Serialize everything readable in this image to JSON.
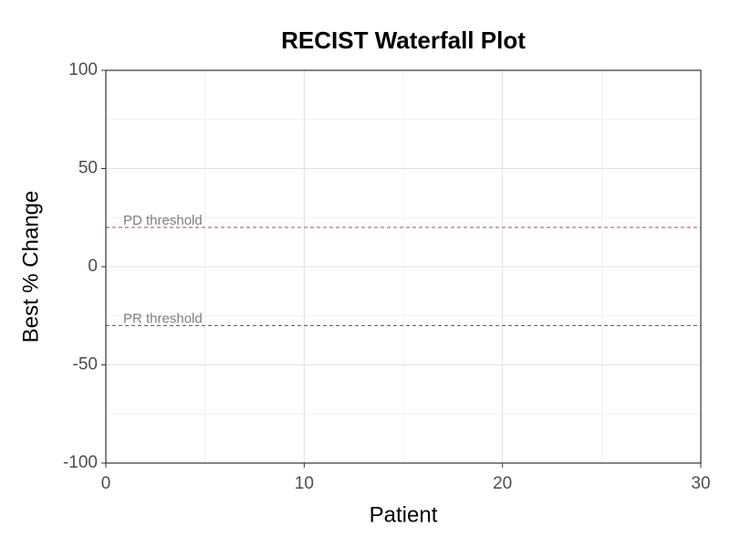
{
  "chart_data": {
    "type": "bar",
    "title": "RECIST Waterfall Plot",
    "x_label": "Patient",
    "y_label": "Best % Change",
    "x": [],
    "values": [],
    "color": "#4472c4",
    "xlim": [
      0,
      30
    ],
    "xticks": [
      0,
      10,
      20,
      30
    ],
    "x_minor_ticks": [
      5,
      15,
      25
    ],
    "ylim": [
      -100,
      100
    ],
    "yticks": [
      -100,
      -50,
      0,
      50,
      100
    ],
    "y_minor_ticks": [
      -75,
      -25,
      25,
      75
    ],
    "grid": true,
    "reference_lines": [
      {
        "value": 20,
        "label": "PD threshold",
        "color": "#b0415e"
      },
      {
        "value": -30,
        "label": "PR threshold",
        "color": "#2e6f8e"
      }
    ]
  }
}
